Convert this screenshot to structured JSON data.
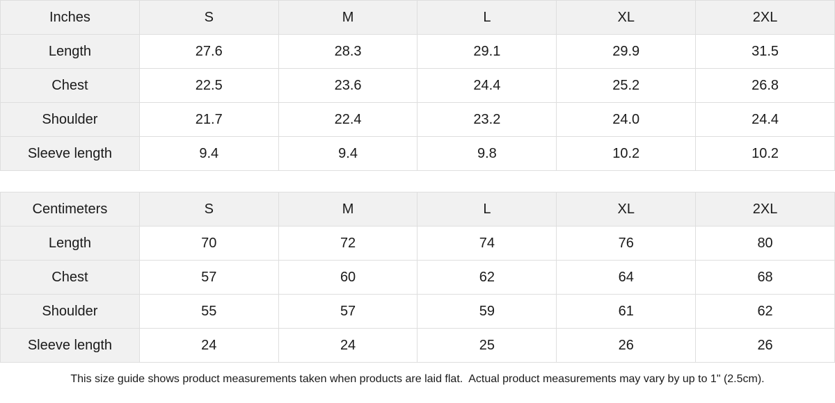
{
  "colors": {
    "background": "#ffffff",
    "header_bg": "#f1f1f1",
    "border": "#dedede",
    "text": "#1a1a1a"
  },
  "chart_data": [
    {
      "type": "table",
      "columns": [
        "Inches",
        "S",
        "M",
        "L",
        "XL",
        "2XL"
      ],
      "rows": [
        [
          "Length",
          "27.6",
          "28.3",
          "29.1",
          "29.9",
          "31.5"
        ],
        [
          "Chest",
          "22.5",
          "23.6",
          "24.4",
          "25.2",
          "26.8"
        ],
        [
          "Shoulder",
          "21.7",
          "22.4",
          "23.2",
          "24.0",
          "24.4"
        ],
        [
          "Sleeve length",
          "9.4",
          "9.4",
          "9.8",
          "10.2",
          "10.2"
        ]
      ]
    },
    {
      "type": "table",
      "columns": [
        "Centimeters",
        "S",
        "M",
        "L",
        "XL",
        "2XL"
      ],
      "rows": [
        [
          "Length",
          "70",
          "72",
          "74",
          "76",
          "80"
        ],
        [
          "Chest",
          "57",
          "60",
          "62",
          "64",
          "68"
        ],
        [
          "Shoulder",
          "55",
          "57",
          "59",
          "61",
          "62"
        ],
        [
          "Sleeve length",
          "24",
          "24",
          "25",
          "26",
          "26"
        ]
      ]
    }
  ],
  "footer": {
    "note": "This size guide shows product measurements taken when products are laid flat.  Actual product measurements may vary by up to 1\" (2.5cm)."
  }
}
